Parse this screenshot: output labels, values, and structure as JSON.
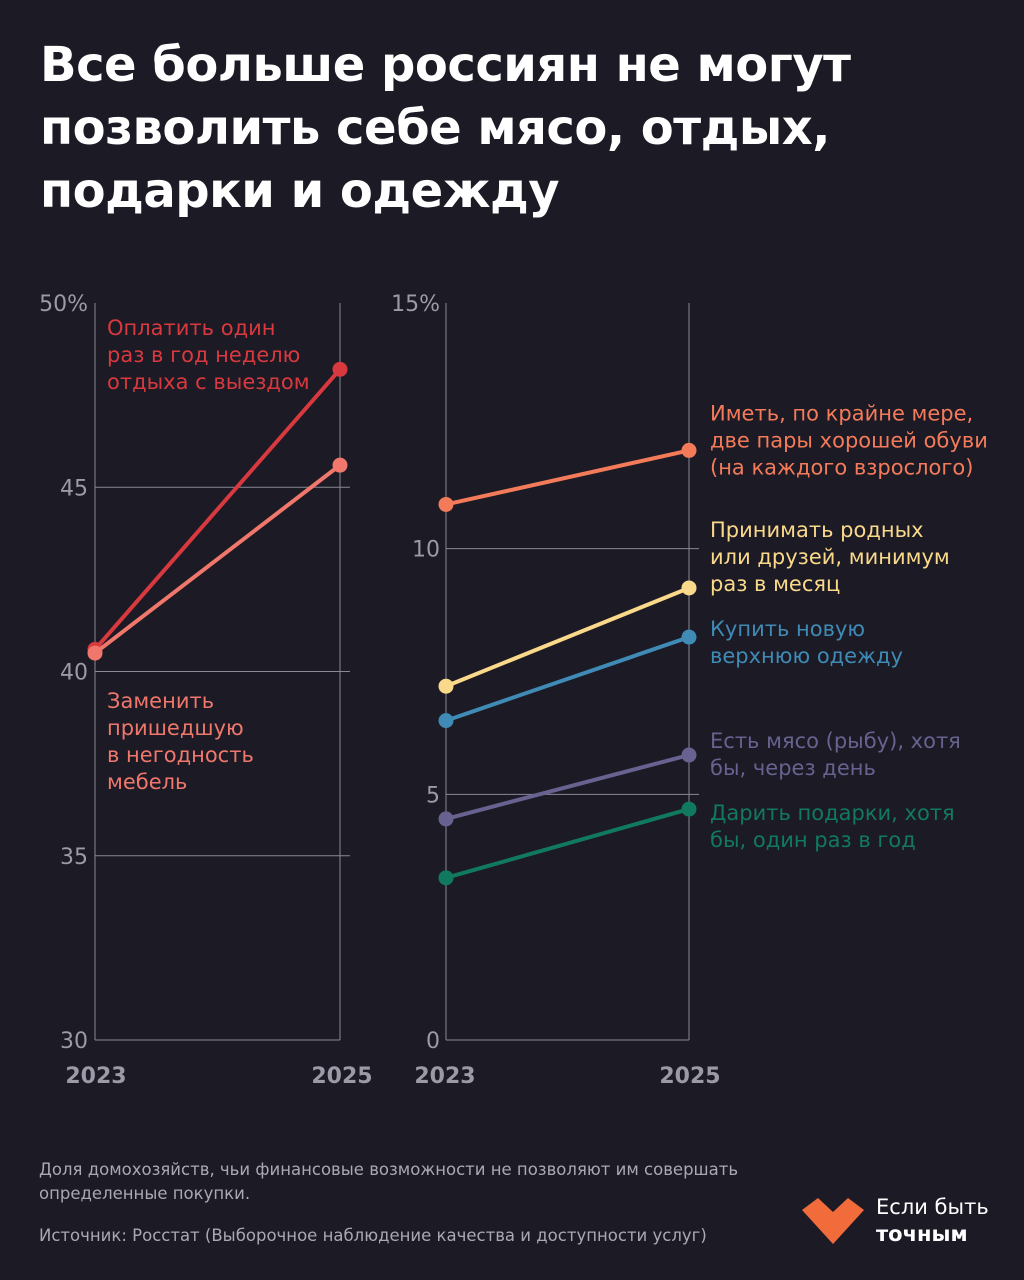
{
  "title_lines": [
    "Все больше россиян не могут",
    "позволить себе мясо, отдых,",
    "подарки и одежду"
  ],
  "footnote": "Доля домохозяйств, чьи финансовые возможности не позволяют им совершать определенные покупки.",
  "source": "Источник: Росстат (Выборочное наблюдение качества и доступности услуг)",
  "logo": {
    "line1": "Если быть",
    "line2": "точным",
    "icon": "heart-logo-icon",
    "color": "#f26b3a"
  },
  "colors": {
    "background": "#1b1a25",
    "grid": "#8a8996",
    "tick_text": "#9b9aa6"
  },
  "chart_data": [
    {
      "type": "line",
      "x": [
        "2023",
        "2025"
      ],
      "ylim": [
        30,
        50
      ],
      "yticks": [
        {
          "value": 50,
          "label": "50%"
        },
        {
          "value": 45,
          "label": "45"
        },
        {
          "value": 40,
          "label": "40"
        },
        {
          "value": 35,
          "label": "35"
        },
        {
          "value": 30,
          "label": "30"
        }
      ],
      "grid": true,
      "series": [
        {
          "name": "Оплатить один раз в год неделю отдыха с выездом",
          "label_lines": [
            "Оплатить один",
            "раз в год неделю",
            "отдыха с выездом"
          ],
          "label_anchor": "top-left",
          "color": "#d8393f",
          "values": [
            40.6,
            48.2
          ]
        },
        {
          "name": "Заменить пришедшую в негодность мебель",
          "label_lines": [
            "Заменить",
            "пришедшую",
            "в негодность",
            "мебель"
          ],
          "label_anchor": "below-start",
          "color": "#f0776b",
          "values": [
            40.5,
            45.6
          ]
        }
      ]
    },
    {
      "type": "line",
      "x": [
        "2023",
        "2025"
      ],
      "ylim": [
        0,
        15
      ],
      "yticks": [
        {
          "value": 15,
          "label": "15%"
        },
        {
          "value": 10,
          "label": "10"
        },
        {
          "value": 5,
          "label": "5"
        },
        {
          "value": 0,
          "label": "0"
        }
      ],
      "grid": true,
      "series": [
        {
          "name": "Иметь, по крайне мере, две пары хорошей обуви (на каждого взрослого)",
          "label_lines": [
            "Иметь, по крайне мере,",
            "две пары хорошей обуви",
            "(на каждого взрослого)"
          ],
          "label_anchor": "right",
          "color": "#f47b5a",
          "values": [
            10.9,
            12.0
          ]
        },
        {
          "name": "Принимать родных или друзей, минимум раз в месяц",
          "label_lines": [
            "Принимать родных",
            "или друзей, минимум",
            "раз в месяц"
          ],
          "label_anchor": "right",
          "color": "#fbd98a",
          "values": [
            7.2,
            9.2
          ]
        },
        {
          "name": "Купить новую верхнюю одежду",
          "label_lines": [
            "Купить новую",
            "верхнюю одежду"
          ],
          "label_anchor": "right",
          "color": "#3f8bb5",
          "values": [
            6.5,
            8.2
          ]
        },
        {
          "name": "Есть мясо (рыбу), хотя бы, через день",
          "label_lines": [
            "Есть мясо (рыбу), хотя",
            "бы, через день"
          ],
          "label_anchor": "right",
          "color": "#67628f",
          "values": [
            4.5,
            5.8
          ]
        },
        {
          "name": "Дарить подарки, хотя бы, один раз в год",
          "label_lines": [
            "Дарить подарки, хотя",
            "бы, один раз в год"
          ],
          "label_anchor": "right",
          "color": "#117a5e",
          "values": [
            3.3,
            4.7
          ]
        }
      ]
    }
  ]
}
